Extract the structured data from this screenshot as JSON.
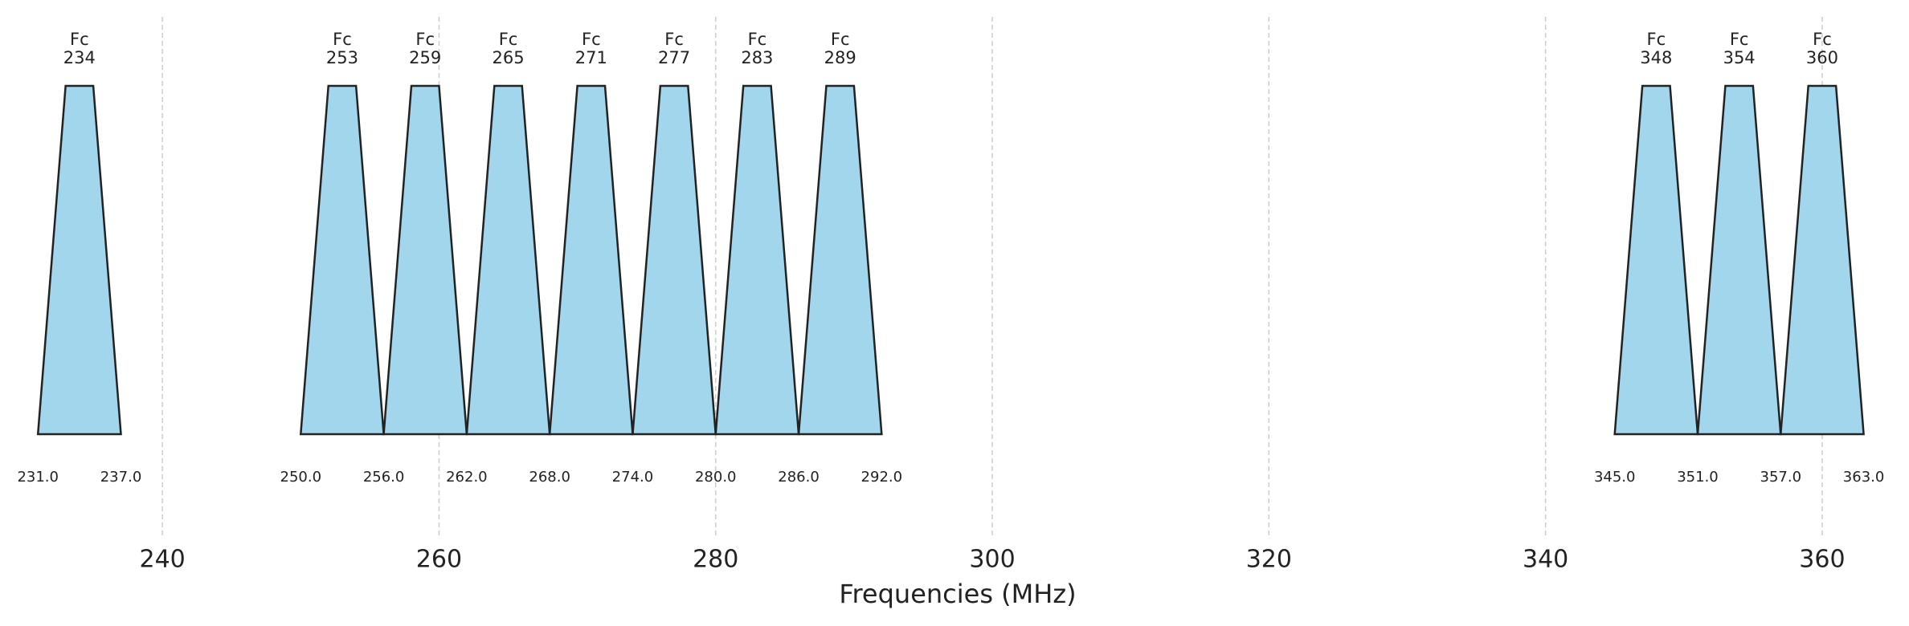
{
  "chart_data": {
    "type": "spectrum",
    "xlabel": "Frequencies (MHz)",
    "fc_label": "Fc",
    "fc": [
      234,
      253,
      259,
      265,
      271,
      277,
      283,
      289,
      348,
      354,
      360
    ],
    "low": [
      231,
      250,
      256,
      262,
      268,
      274,
      280,
      286,
      345,
      351,
      357
    ],
    "high": [
      237,
      256,
      262,
      268,
      274,
      280,
      286,
      292,
      351,
      357,
      363
    ],
    "edges": [
      231,
      237,
      250,
      256,
      262,
      268,
      274,
      280,
      286,
      292,
      345,
      351,
      357,
      363
    ],
    "edge_labels": [
      "231.0",
      "237.0",
      "250.0",
      "256.0",
      "262.0",
      "268.0",
      "274.0",
      "280.0",
      "286.0",
      "292.0",
      "345.0",
      "351.0",
      "357.0",
      "363.0"
    ],
    "color": "#a1d6ec",
    "xlim": [
      230,
      365
    ],
    "xticks": [
      240,
      260,
      280,
      300,
      320,
      340,
      360
    ],
    "grid": true
  }
}
